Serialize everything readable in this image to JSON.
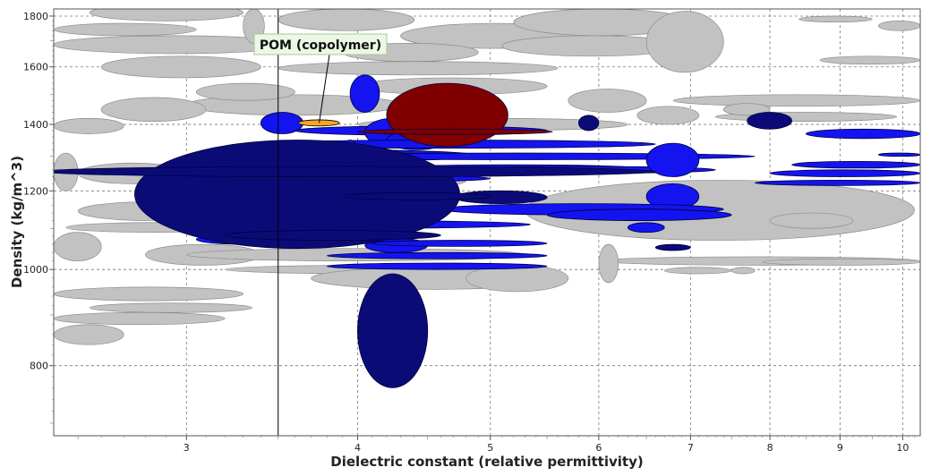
{
  "chart_data": {
    "type": "scatter",
    "title": "",
    "xlabel": "Dielectric constant (relative permittivity)",
    "ylabel": "Density (kg/m^3)",
    "xscale": "log",
    "yscale": "log",
    "xlim": [
      2.4,
      10.3
    ],
    "ylim": [
      680,
      1830
    ],
    "x_ticks": [
      3,
      4,
      5,
      6,
      7,
      8,
      9,
      10
    ],
    "y_ticks": [
      800,
      1000,
      1200,
      1400,
      1600,
      1800
    ],
    "grid": true,
    "reference_line_x": 3.5,
    "colors": {
      "background_materials": "#c2c2c2",
      "selected_blue": "#1414f0",
      "selected_navy": "#0b0b78",
      "selected_red": "#800000",
      "highlight": "#f5a623",
      "annotation_fill": "#eaf8e4"
    },
    "annotation": {
      "text": "POM (copolymer)",
      "x": 3.75,
      "y": 1405
    },
    "series": [
      {
        "role": "background",
        "color": "#c2c2c2",
        "ranges": [
          {
            "x": [
              2.55,
              3.3
            ],
            "y": [
              1780,
              1850
            ]
          },
          {
            "x": [
              2.4,
              3.05
            ],
            "y": [
              1720,
              1770
            ]
          },
          {
            "x": [
              2.4,
              3.6
            ],
            "y": [
              1650,
              1720
            ]
          },
          {
            "x": [
              2.6,
              3.4
            ],
            "y": [
              1560,
              1640
            ]
          },
          {
            "x": [
              3.3,
              3.42
            ],
            "y": [
              1690,
              1830
            ]
          },
          {
            "x": [
              3.5,
              4.4
            ],
            "y": [
              1740,
              1830
            ]
          },
          {
            "x": [
              4.3,
              5.9
            ],
            "y": [
              1670,
              1770
            ]
          },
          {
            "x": [
              5.2,
              7.0
            ],
            "y": [
              1720,
              1830
            ]
          },
          {
            "x": [
              5.1,
              6.9
            ],
            "y": [
              1640,
              1720
            ]
          },
          {
            "x": [
              6.5,
              7.4
            ],
            "y": [
              1580,
              1820
            ]
          },
          {
            "x": [
              3.9,
              4.9
            ],
            "y": [
              1620,
              1690
            ]
          },
          {
            "x": [
              3.5,
              5.6
            ],
            "y": [
              1570,
              1620
            ]
          },
          {
            "x": [
              4.0,
              5.5
            ],
            "y": [
              1500,
              1560
            ]
          },
          {
            "x": [
              3.0,
              4.3
            ],
            "y": [
              1430,
              1500
            ]
          },
          {
            "x": [
              2.6,
              3.1
            ],
            "y": [
              1410,
              1490
            ]
          },
          {
            "x": [
              3.05,
              3.6
            ],
            "y": [
              1480,
              1540
            ]
          },
          {
            "x": [
              2.4,
              2.7
            ],
            "y": [
              1370,
              1420
            ]
          },
          {
            "x": [
              4.0,
              6.3
            ],
            "y": [
              1380,
              1420
            ]
          },
          {
            "x": [
              5.7,
              6.5
            ],
            "y": [
              1440,
              1520
            ]
          },
          {
            "x": [
              6.4,
              7.1
            ],
            "y": [
              1400,
              1460
            ]
          },
          {
            "x": [
              6.8,
              10.3
            ],
            "y": [
              1460,
              1500
            ]
          },
          {
            "x": [
              7.3,
              9.9
            ],
            "y": [
              1410,
              1440
            ]
          },
          {
            "x": [
              8.7,
              10.3
            ],
            "y": [
              1610,
              1640
            ]
          },
          {
            "x": [
              8.4,
              9.5
            ],
            "y": [
              1775,
              1800
            ]
          },
          {
            "x": [
              9.6,
              10.3
            ],
            "y": [
              1740,
              1780
            ]
          },
          {
            "x": [
              7.4,
              8.0
            ],
            "y": [
              1430,
              1470
            ]
          },
          {
            "x": [
              2.4,
              2.5
            ],
            "y": [
              1200,
              1310
            ]
          },
          {
            "x": [
              2.5,
              3.0
            ],
            "y": [
              1220,
              1280
            ]
          },
          {
            "x": [
              3.3,
              4.8
            ],
            "y": [
              1200,
              1260
            ]
          },
          {
            "x": [
              5.3,
              10.2
            ],
            "y": [
              1070,
              1230
            ]
          },
          {
            "x": [
              2.5,
              3.2
            ],
            "y": [
              1120,
              1170
            ]
          },
          {
            "x": [
              2.45,
              3.3
            ],
            "y": [
              1090,
              1115
            ]
          },
          {
            "x": [
              2.4,
              2.6
            ],
            "y": [
              1020,
              1090
            ]
          },
          {
            "x": [
              2.8,
              3.4
            ],
            "y": [
              1010,
              1060
            ]
          },
          {
            "x": [
              3.0,
              5.3
            ],
            "y": [
              1020,
              1050
            ]
          },
          {
            "x": [
              3.2,
              5.4
            ],
            "y": [
              990,
              1010
            ]
          },
          {
            "x": [
              3.7,
              5.6
            ],
            "y": [
              955,
              1005
            ]
          },
          {
            "x": [
              4.8,
              5.7
            ],
            "y": [
              950,
              1010
            ]
          },
          {
            "x": [
              2.4,
              3.3
            ],
            "y": [
              930,
              960
            ]
          },
          {
            "x": [
              2.55,
              3.35
            ],
            "y": [
              905,
              925
            ]
          },
          {
            "x": [
              2.4,
              3.2
            ],
            "y": [
              880,
              905
            ]
          },
          {
            "x": [
              2.4,
              2.7
            ],
            "y": [
              840,
              880
            ]
          },
          {
            "x": [
              6.0,
              10.3
            ],
            "y": [
              1010,
              1030
            ]
          },
          {
            "x": [
              6.0,
              6.2
            ],
            "y": [
              970,
              1060
            ]
          },
          {
            "x": [
              7.9,
              10.3
            ],
            "y": [
              1010,
              1025
            ]
          },
          {
            "x": [
              8.0,
              9.2
            ],
            "y": [
              1100,
              1140
            ]
          },
          {
            "x": [
              6.7,
              7.5
            ],
            "y": [
              990,
              1005
            ]
          },
          {
            "x": [
              7.5,
              7.8
            ],
            "y": [
              990,
              1005
            ]
          }
        ]
      },
      {
        "role": "selected",
        "color": "#1414f0",
        "ranges": [
          {
            "x": [
              3.4,
              3.65
            ],
            "y": [
              1370,
              1440
            ]
          },
          {
            "x": [
              3.6,
              5.5
            ],
            "y": [
              1365,
              1395
            ]
          },
          {
            "x": [
              3.95,
              4.15
            ],
            "y": [
              1440,
              1570
            ]
          },
          {
            "x": [
              4.05,
              4.45
            ],
            "y": [
              1330,
              1420
            ]
          },
          {
            "x": [
              4.2,
              4.65
            ],
            "y": [
              1320,
              1380
            ]
          },
          {
            "x": [
              3.3,
              6.6
            ],
            "y": [
              1325,
              1350
            ]
          },
          {
            "x": [
              3.0,
              4.9
            ],
            "y": [
              1285,
              1320
            ]
          },
          {
            "x": [
              3.5,
              7.8
            ],
            "y": [
              1290,
              1310
            ]
          },
          {
            "x": [
              3.9,
              4.0
            ],
            "y": [
              1270,
              1350
            ]
          },
          {
            "x": [
              4.1,
              6.5
            ],
            "y": [
              1250,
              1275
            ]
          },
          {
            "x": [
              4.7,
              7.3
            ],
            "y": [
              1250,
              1270
            ]
          },
          {
            "x": [
              3.3,
              5.0
            ],
            "y": [
              1225,
              1245
            ]
          },
          {
            "x": [
              6.5,
              7.1
            ],
            "y": [
              1240,
              1340
            ]
          },
          {
            "x": [
              6.5,
              7.1
            ],
            "y": [
              1150,
              1220
            ]
          },
          {
            "x": [
              2.9,
              4.8
            ],
            "y": [
              1140,
              1160
            ]
          },
          {
            "x": [
              4.6,
              7.4
            ],
            "y": [
              1135,
              1165
            ]
          },
          {
            "x": [
              5.5,
              7.5
            ],
            "y": [
              1120,
              1150
            ]
          },
          {
            "x": [
              2.95,
              5.35
            ],
            "y": [
              1100,
              1120
            ]
          },
          {
            "x": [
              3.2,
              3.5
            ],
            "y": [
              1080,
              1110
            ]
          },
          {
            "x": [
              3.05,
              3.6
            ],
            "y": [
              1060,
              1085
            ]
          },
          {
            "x": [
              4.05,
              4.5
            ],
            "y": [
              1040,
              1075
            ]
          },
          {
            "x": [
              4.1,
              5.5
            ],
            "y": [
              1055,
              1070
            ]
          },
          {
            "x": [
              6.3,
              6.7
            ],
            "y": [
              1090,
              1115
            ]
          },
          {
            "x": [
              3.8,
              5.5
            ],
            "y": [
              1025,
              1040
            ]
          },
          {
            "x": [
              3.8,
              5.5
            ],
            "y": [
              1000,
              1015
            ]
          },
          {
            "x": [
              8.5,
              10.3
            ],
            "y": [
              1355,
              1385
            ]
          },
          {
            "x": [
              9.6,
              10.3
            ],
            "y": [
              1300,
              1310
            ]
          },
          {
            "x": [
              8.3,
              10.3
            ],
            "y": [
              1265,
              1285
            ]
          },
          {
            "x": [
              8.0,
              10.3
            ],
            "y": [
              1240,
              1260
            ]
          },
          {
            "x": [
              7.8,
              10.3
            ],
            "y": [
              1215,
              1230
            ]
          },
          {
            "x": [
              3.5,
              3.65
            ],
            "y": [
              1160,
              1200
            ]
          }
        ]
      },
      {
        "role": "selected",
        "color": "#0b0b78",
        "ranges": [
          {
            "x": [
              2.75,
              4.75
            ],
            "y": [
              1050,
              1350
            ]
          },
          {
            "x": [
              2.35,
              6.6
            ],
            "y": [
              1240,
              1270
            ]
          },
          {
            "x": [
              4.0,
              4.5
            ],
            "y": [
              760,
              990
            ]
          },
          {
            "x": [
              5.8,
              6.0
            ],
            "y": [
              1380,
              1430
            ]
          },
          {
            "x": [
              7.7,
              8.3
            ],
            "y": [
              1385,
              1440
            ]
          },
          {
            "x": [
              6.6,
              7.0
            ],
            "y": [
              1045,
              1060
            ]
          },
          {
            "x": [
              4.7,
              5.5
            ],
            "y": [
              1165,
              1200
            ]
          },
          {
            "x": [
              3.9,
              5.0
            ],
            "y": [
              1175,
              1195
            ]
          },
          {
            "x": [
              3.2,
              4.6
            ],
            "y": [
              1070,
              1095
            ]
          }
        ]
      },
      {
        "role": "selected",
        "color": "#800000",
        "ranges": [
          {
            "x": [
              4.2,
              5.15
            ],
            "y": [
              1330,
              1540
            ]
          },
          {
            "x": [
              4.0,
              5.55
            ],
            "y": [
              1368,
              1385
            ]
          }
        ]
      },
      {
        "role": "highlight",
        "name": "POM (copolymer)",
        "color": "#f5a623",
        "ranges": [
          {
            "x": [
              3.62,
              3.88
            ],
            "y": [
              1395,
              1415
            ]
          }
        ]
      }
    ]
  }
}
